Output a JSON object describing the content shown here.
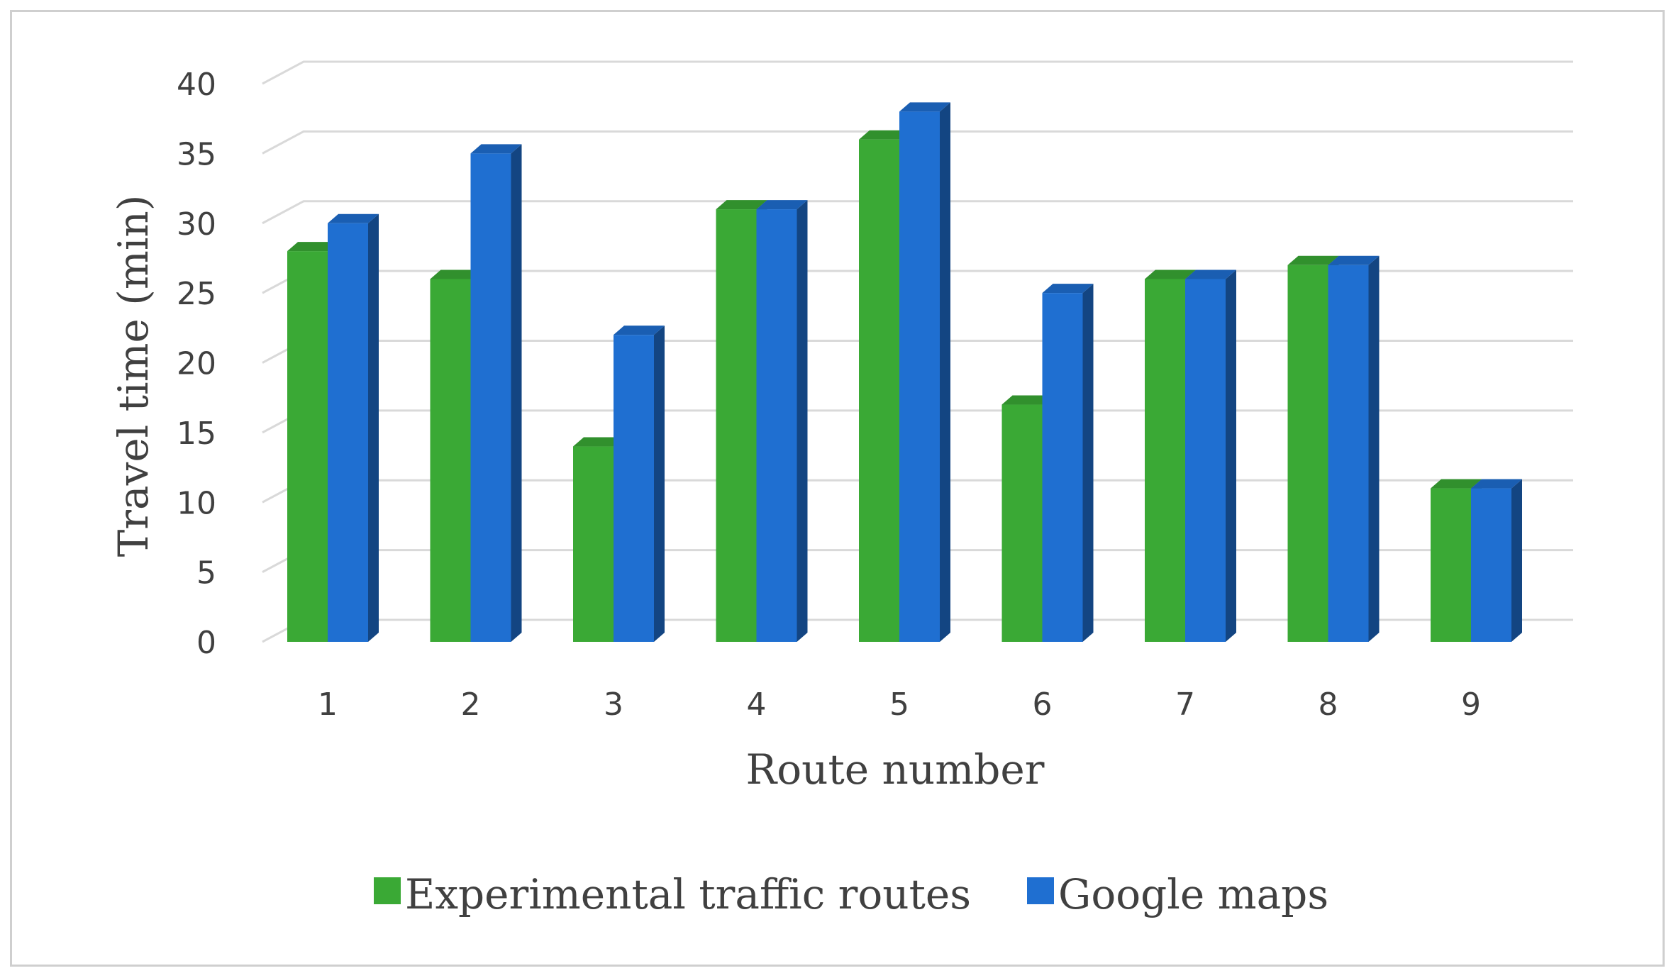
{
  "chart_data": {
    "type": "bar",
    "style": "3d-clustered-column",
    "categories": [
      "1",
      "2",
      "3",
      "4",
      "5",
      "6",
      "7",
      "8",
      "9"
    ],
    "series": [
      {
        "name": "Experimental traffic routes",
        "color": "#3aa935",
        "values": [
          28,
          26,
          14,
          31,
          36,
          17,
          26,
          27,
          11
        ]
      },
      {
        "name": "Google maps",
        "color": "#1f6fd1",
        "values": [
          30,
          35,
          22,
          31,
          38,
          25,
          26,
          27,
          11
        ]
      }
    ],
    "xlabel": "Route number",
    "ylabel": "Travel time (min)",
    "ylim": [
      0,
      40
    ],
    "yticks": [
      "0",
      "5",
      "10",
      "15",
      "20",
      "25",
      "30",
      "35",
      "40"
    ],
    "grid": true,
    "legend_position": "bottom"
  }
}
